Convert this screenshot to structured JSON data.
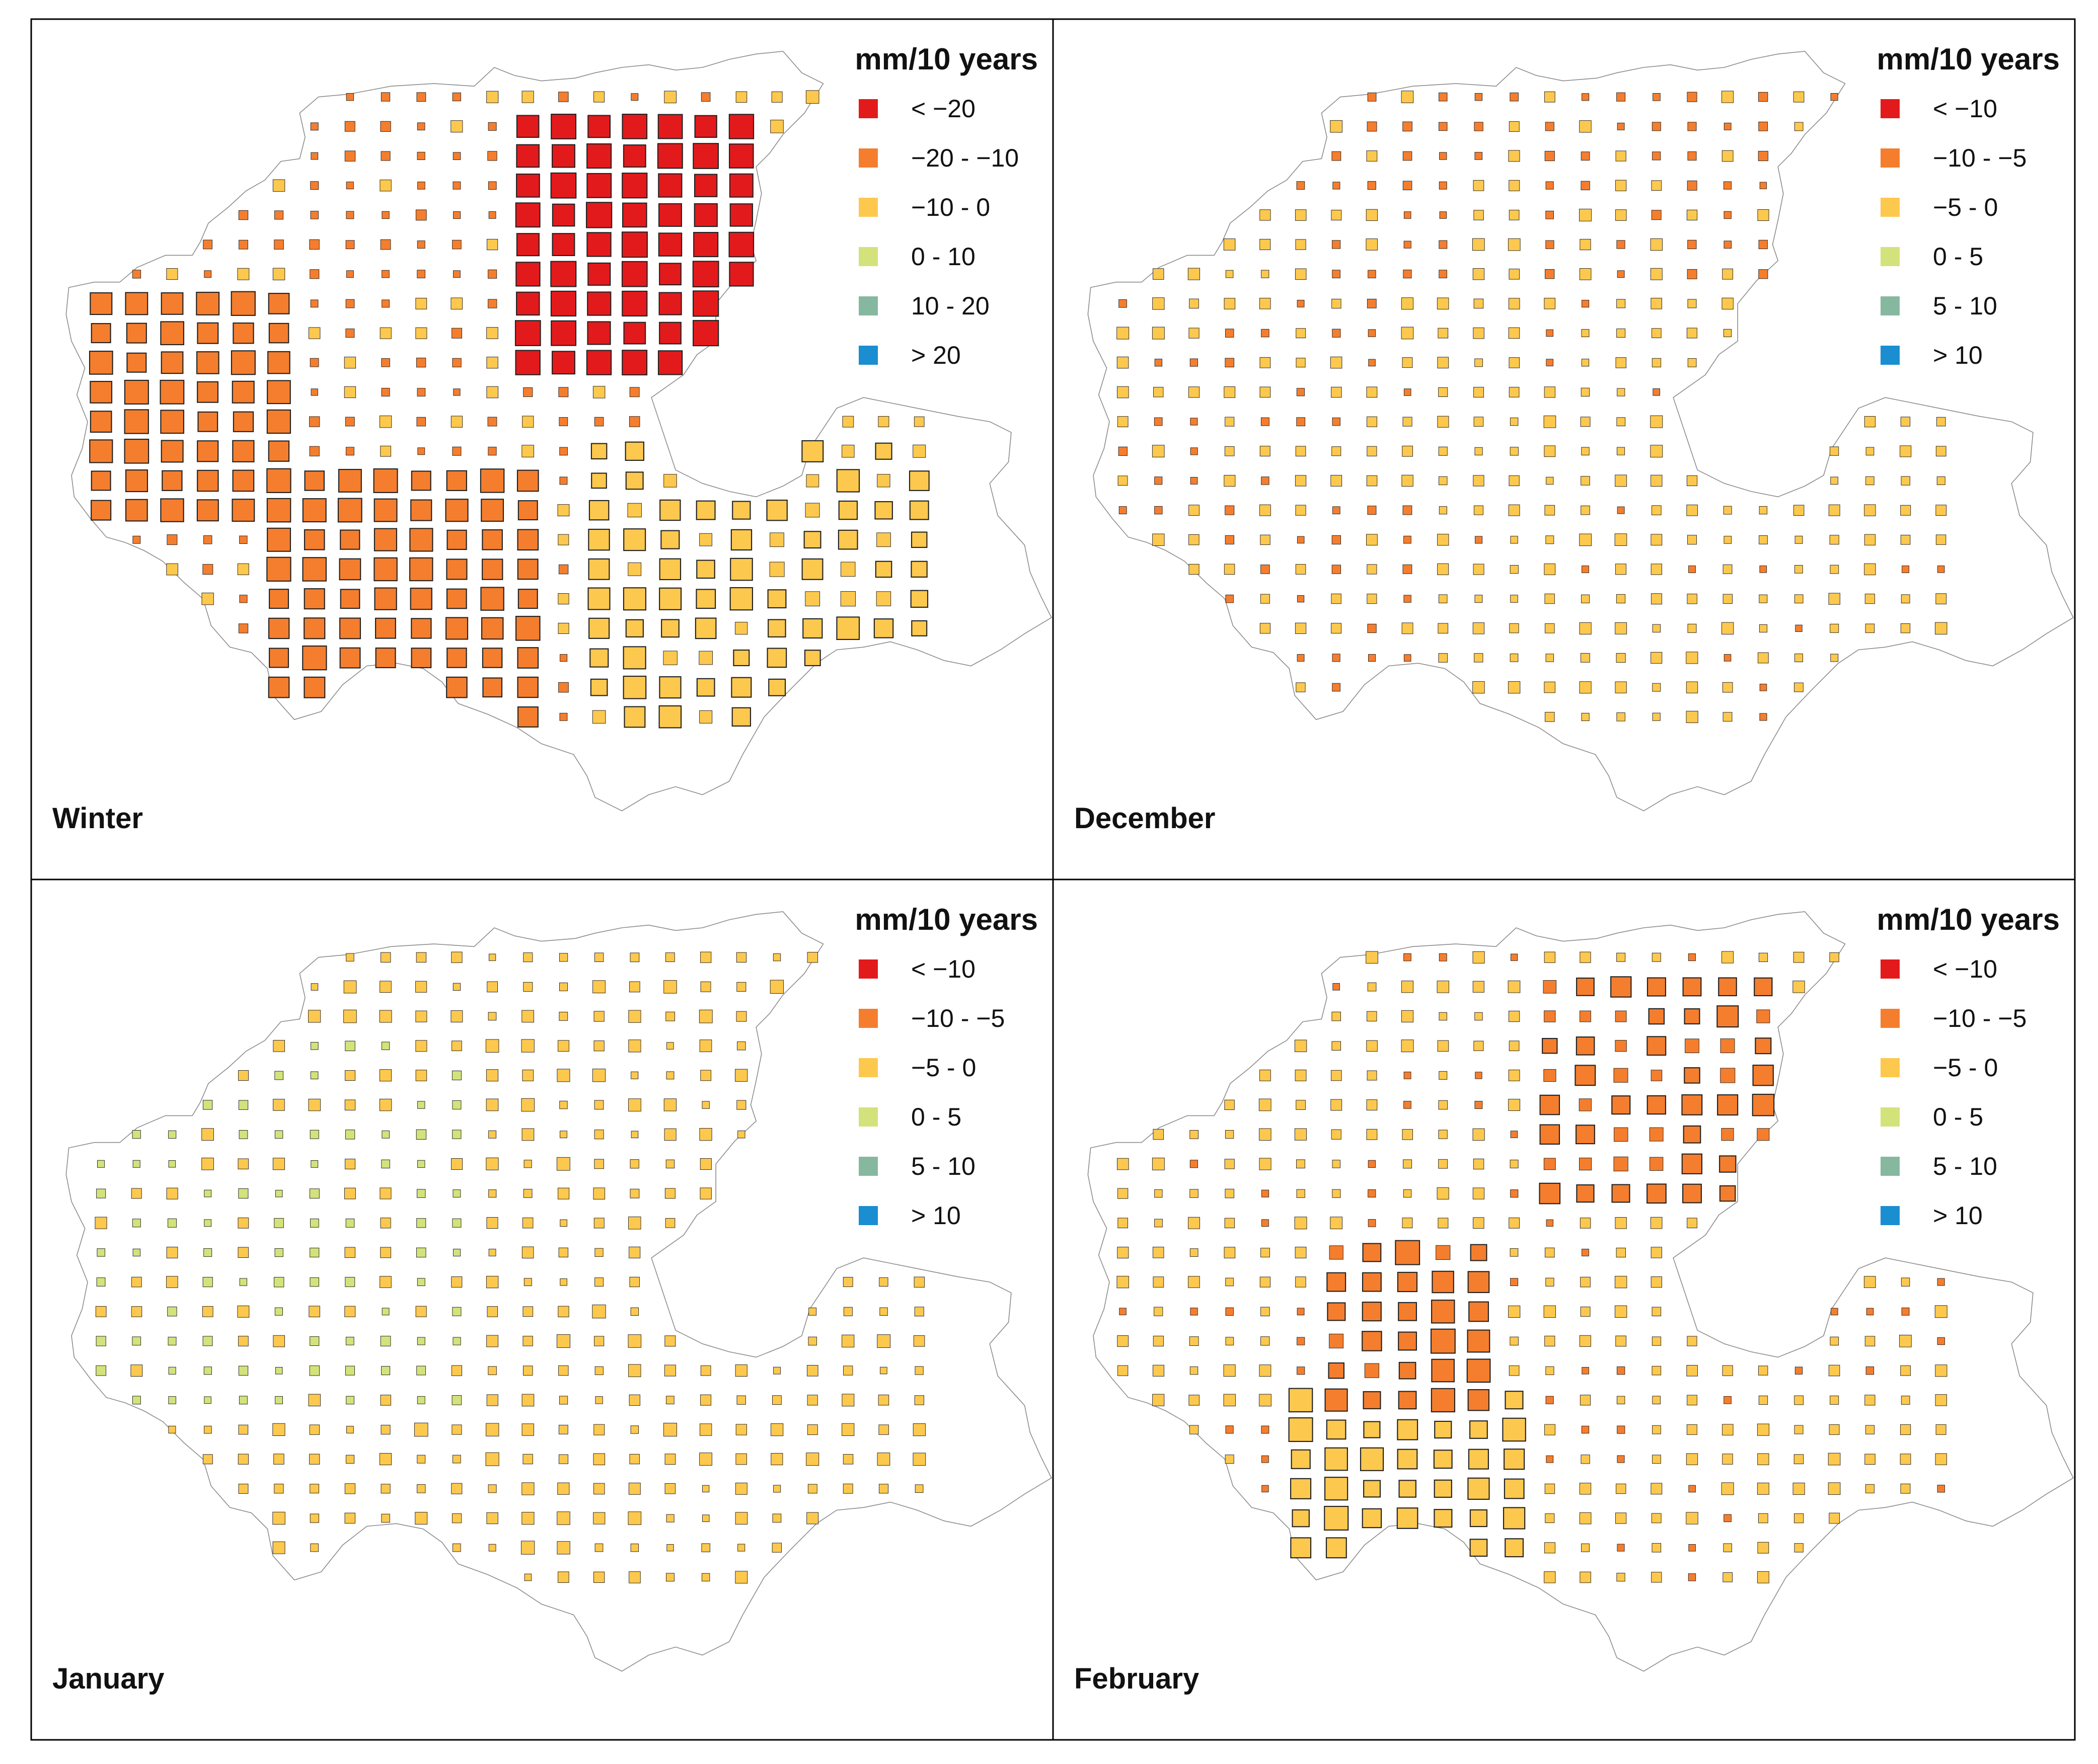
{
  "figure": {
    "legend_title": "mm/10 years",
    "colors": [
      "#e31a1c",
      "#f47e2e",
      "#fdc84e",
      "#d3e27a",
      "#86b8a0",
      "#1a8ed1"
    ],
    "panels": [
      {
        "title": "Winter",
        "legend": [
          "< −20",
          "−20 - −10",
          "−10 - 0",
          "0 - 10",
          "10 - 20",
          "> 20"
        ],
        "dominant_classes": [
          "−20 - −10",
          "< −20",
          "−10 - 0"
        ]
      },
      {
        "title": "December",
        "legend": [
          "< −10",
          "−10 - −5",
          "−5 - 0",
          "0 - 5",
          "5 - 10",
          "> 10"
        ],
        "dominant_classes": [
          "−5 - 0",
          "−10 - −5"
        ]
      },
      {
        "title": "January",
        "legend": [
          "< −10",
          "−10 - −5",
          "−5 - 0",
          "0 - 5",
          "5 - 10",
          "> 10"
        ],
        "dominant_classes": [
          "−5 - 0",
          "0 - 5"
        ]
      },
      {
        "title": "February",
        "legend": [
          "< −10",
          "−10 - −5",
          "−5 - 0",
          "0 - 5",
          "5 - 10",
          "> 10"
        ],
        "dominant_classes": [
          "−5 - 0",
          "−10 - −5"
        ]
      }
    ]
  }
}
